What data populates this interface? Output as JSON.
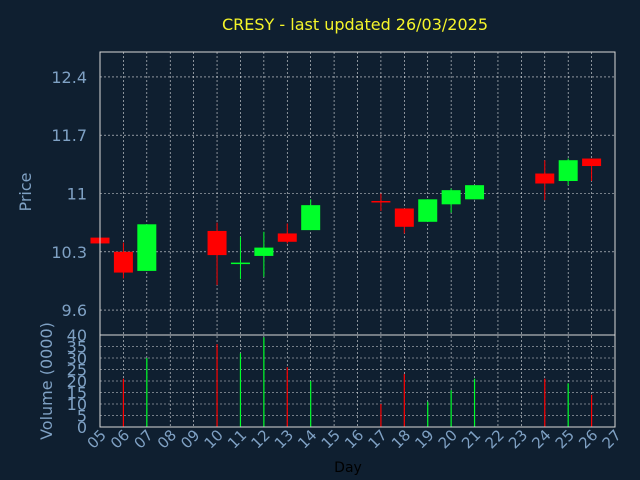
{
  "title": "CRESY - last updated 26/03/2025",
  "colors": {
    "background": "#0f1f30",
    "title": "#f5f52a",
    "axis_text": "#7fa1c4",
    "axis_line": "#d8d8d8",
    "grid": "#ffffff",
    "up": "#00ff2a",
    "down": "#ff0000"
  },
  "chart_data": [
    {
      "type": "candlestick",
      "ylabel": "Price",
      "ylim": [
        9.3,
        12.7
      ],
      "yticks": [
        "12.4",
        "11.7",
        "11",
        "10.3",
        "9.6"
      ],
      "grid": true,
      "candles": [
        {
          "day": "05",
          "open": 10.47,
          "high": 10.47,
          "low": 10.39,
          "close": 10.4
        },
        {
          "day": "06",
          "open": 10.3,
          "high": 10.41,
          "low": 9.98,
          "close": 10.05
        },
        {
          "day": "07",
          "open": 10.07,
          "high": 10.63,
          "low": 10.07,
          "close": 10.63
        },
        {
          "day": "10",
          "open": 10.55,
          "high": 10.65,
          "low": 9.9,
          "close": 10.26
        },
        {
          "day": "11",
          "open": 10.16,
          "high": 10.48,
          "low": 9.97,
          "close": 10.17
        },
        {
          "day": "12",
          "open": 10.25,
          "high": 10.54,
          "low": 10.0,
          "close": 10.35
        },
        {
          "day": "13",
          "open": 10.52,
          "high": 10.64,
          "low": 10.4,
          "close": 10.42
        },
        {
          "day": "14",
          "open": 10.56,
          "high": 10.93,
          "low": 10.56,
          "close": 10.86
        },
        {
          "day": "17",
          "open": 10.91,
          "high": 11.0,
          "low": 10.79,
          "close": 10.9
        },
        {
          "day": "18",
          "open": 10.82,
          "high": 10.82,
          "low": 10.52,
          "close": 10.6
        },
        {
          "day": "19",
          "open": 10.66,
          "high": 10.93,
          "low": 10.66,
          "close": 10.93
        },
        {
          "day": "20",
          "open": 10.87,
          "high": 11.06,
          "low": 10.77,
          "close": 11.04
        },
        {
          "day": "21",
          "open": 10.93,
          "high": 11.1,
          "low": 10.93,
          "close": 11.1
        },
        {
          "day": "24",
          "open": 11.24,
          "high": 11.4,
          "low": 10.92,
          "close": 11.12
        },
        {
          "day": "25",
          "open": 11.15,
          "high": 11.42,
          "low": 11.1,
          "close": 11.4
        },
        {
          "day": "26",
          "open": 11.42,
          "high": 11.42,
          "low": 11.15,
          "close": 11.33
        }
      ]
    },
    {
      "type": "bar",
      "ylabel": "Volume (0000)",
      "xlabel": "Day",
      "ylim": [
        0,
        40
      ],
      "yticks": [
        "40",
        "35",
        "30",
        "25",
        "20",
        "15",
        "10",
        "5",
        "0"
      ],
      "grid": true,
      "categories": [
        "05",
        "06",
        "07",
        "08",
        "09",
        "10",
        "11",
        "12",
        "13",
        "14",
        "15",
        "16",
        "17",
        "18",
        "19",
        "20",
        "21",
        "22",
        "23",
        "24",
        "25",
        "26",
        "27"
      ],
      "values": [
        {
          "day": "06",
          "value": 21,
          "direction": "down"
        },
        {
          "day": "07",
          "value": 30,
          "direction": "up"
        },
        {
          "day": "10",
          "value": 36,
          "direction": "down"
        },
        {
          "day": "11",
          "value": 32,
          "direction": "up"
        },
        {
          "day": "12",
          "value": 39,
          "direction": "up"
        },
        {
          "day": "13",
          "value": 26,
          "direction": "down"
        },
        {
          "day": "14",
          "value": 20,
          "direction": "up"
        },
        {
          "day": "17",
          "value": 10,
          "direction": "down"
        },
        {
          "day": "18",
          "value": 23,
          "direction": "down"
        },
        {
          "day": "19",
          "value": 11,
          "direction": "up"
        },
        {
          "day": "20",
          "value": 16,
          "direction": "up"
        },
        {
          "day": "21",
          "value": 21,
          "direction": "up"
        },
        {
          "day": "24",
          "value": 21,
          "direction": "down"
        },
        {
          "day": "25",
          "value": 19,
          "direction": "up"
        },
        {
          "day": "26",
          "value": 14,
          "direction": "down"
        }
      ]
    }
  ]
}
